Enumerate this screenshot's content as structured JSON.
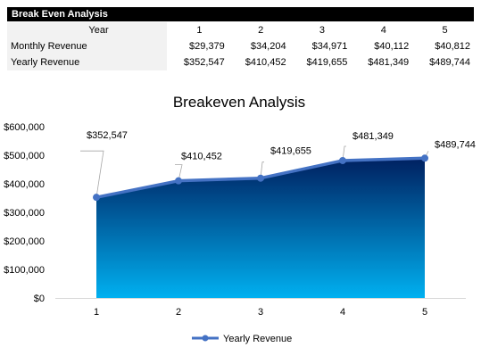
{
  "sheet": {
    "banner": "Break Even Analysis",
    "header_label": "Year",
    "years": [
      "1",
      "2",
      "3",
      "4",
      "5"
    ],
    "rows": [
      {
        "label": "Monthly Revenue",
        "values": [
          "$29,379",
          "$34,204",
          "$34,971",
          "$40,112",
          "$40,812"
        ]
      },
      {
        "label": "Yearly Revenue",
        "values": [
          "$352,547",
          "$410,452",
          "$419,655",
          "$481,349",
          "$489,744"
        ]
      }
    ]
  },
  "chart_data": {
    "type": "area",
    "title": "Breakeven Analysis",
    "categories": [
      "1",
      "2",
      "3",
      "4",
      "5"
    ],
    "series": [
      {
        "name": "Yearly Revenue",
        "values": [
          352547,
          410452,
          419655,
          481349,
          489744
        ]
      }
    ],
    "data_labels": [
      "$352,547",
      "$410,452",
      "$419,655",
      "$481,349",
      "$489,744"
    ],
    "y_ticks": [
      0,
      100000,
      200000,
      300000,
      400000,
      500000,
      600000
    ],
    "y_tick_labels": [
      "$0",
      "$100,000",
      "$200,000",
      "$300,000",
      "$400,000",
      "$500,000",
      "$600,000"
    ],
    "ylim": [
      0,
      600000
    ],
    "grid": false,
    "legend": "bottom",
    "colors": {
      "line": "#4472c4",
      "area_top": "#002060",
      "area_bottom": "#00b0f0"
    }
  }
}
